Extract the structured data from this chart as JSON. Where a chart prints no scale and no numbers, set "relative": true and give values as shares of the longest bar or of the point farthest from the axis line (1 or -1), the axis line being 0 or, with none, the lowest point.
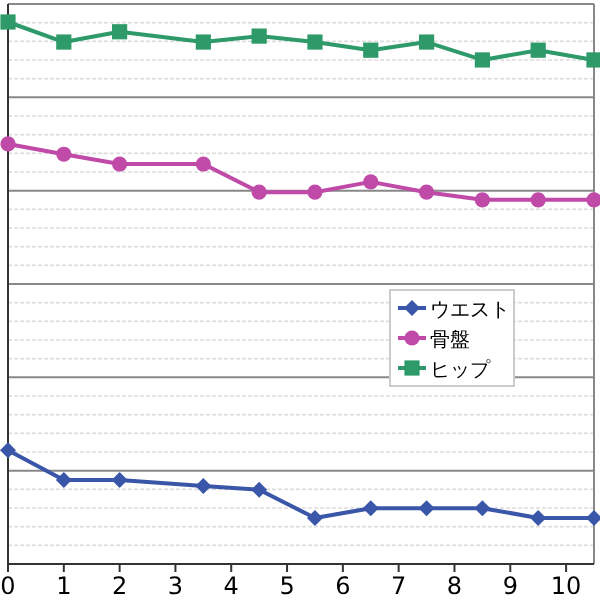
{
  "chart_data": {
    "type": "line",
    "relative": true,
    "x": [
      0,
      1,
      2,
      3.5,
      4.5,
      5.5,
      6.5,
      7.5,
      8.5,
      9.5,
      10.5
    ],
    "xlim": [
      0,
      10.5
    ],
    "xticks": [
      0,
      1,
      2,
      3,
      4,
      5,
      6,
      7,
      8,
      9,
      10
    ],
    "grid": "y",
    "legend": "right",
    "series": [
      {
        "name": "ウエスト",
        "color": "#3a56a8",
        "marker": "diamond",
        "values": [
          0.21,
          0.155,
          0.155,
          0.144,
          0.137,
          0.085,
          0.103,
          0.103,
          0.103,
          0.085,
          0.085
        ]
      },
      {
        "name": "骨盤",
        "color": "#c04aa8",
        "marker": "circle",
        "values": [
          0.775,
          0.756,
          0.738,
          0.738,
          0.686,
          0.686,
          0.705,
          0.686,
          0.672,
          0.672,
          0.672
        ]
      },
      {
        "name": "ヒップ",
        "color": "#2e9a6a",
        "marker": "square",
        "values": [
          1,
          0.963,
          0.982,
          0.963,
          0.974,
          0.963,
          0.948,
          0.963,
          0.93,
          0.948,
          0.93
        ]
      }
    ]
  }
}
